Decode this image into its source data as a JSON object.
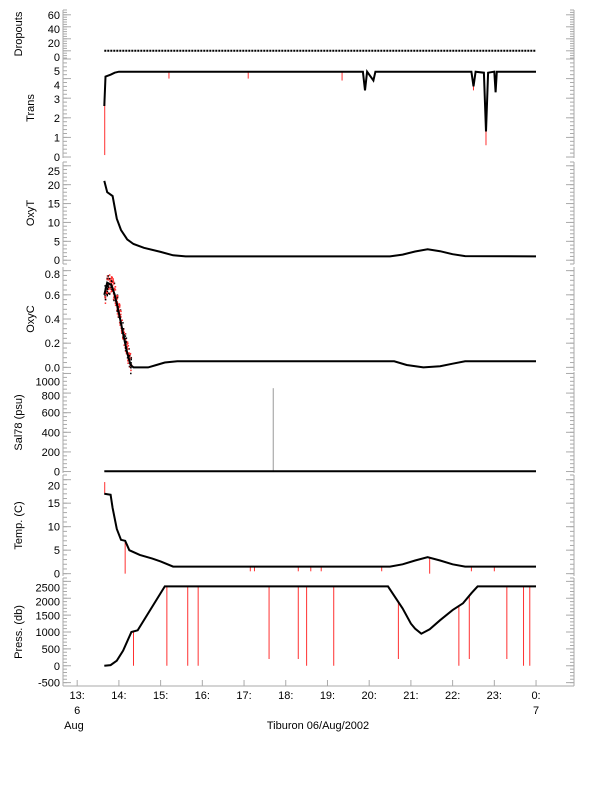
{
  "chart_data": {
    "type": "line",
    "title": "Tiburon 06/Aug/2002",
    "xlabel": "Tiburon 06/Aug/2002",
    "xlim": [
      12.66,
      24.91
    ],
    "x_ticks": [
      {
        "v": 13,
        "label": "13:"
      },
      {
        "v": 14,
        "label": "14:"
      },
      {
        "v": 15,
        "label": "15:"
      },
      {
        "v": 16,
        "label": "16:"
      },
      {
        "v": 17,
        "label": "17:"
      },
      {
        "v": 18,
        "label": "18:"
      },
      {
        "v": 19,
        "label": "19:"
      },
      {
        "v": 20,
        "label": "20:"
      },
      {
        "v": 21,
        "label": "21:"
      },
      {
        "v": 22,
        "label": "22:"
      },
      {
        "v": 23,
        "label": "23:"
      },
      {
        "v": 24,
        "label": "0:"
      }
    ],
    "x_date_labels": [
      {
        "v": 13,
        "day": "6",
        "month": "Aug"
      },
      {
        "v": 24,
        "day": "7",
        "month": ""
      }
    ],
    "colors": {
      "series": "#000000",
      "raw": "#ff3030",
      "raw_light": "#ffb0b0",
      "axis": "#aaaaaa"
    },
    "panels": [
      {
        "name": "dropouts",
        "ylabel": "Dropouts",
        "ylim": [
          -12,
          68
        ],
        "ticks": [
          "60",
          "40",
          "20",
          "0"
        ],
        "tick_values": [
          60,
          40,
          20,
          0
        ],
        "series": [
          [
            13.65,
            0
          ],
          [
            24,
            0
          ]
        ],
        "spikes": [],
        "dotted": true
      },
      {
        "name": "trans",
        "ylabel": "Trans",
        "ylim": [
          -0.05,
          5.05
        ],
        "ticks": [
          "5",
          "4",
          "3",
          "2",
          "1",
          "0"
        ],
        "tick_values": [
          5,
          4,
          3,
          2,
          1,
          0
        ],
        "series": [
          [
            13.65,
            2.6
          ],
          [
            13.68,
            4.1
          ],
          [
            13.8,
            4.2
          ],
          [
            13.9,
            4.3
          ],
          [
            14.0,
            4.35
          ],
          [
            19.85,
            4.35
          ],
          [
            19.9,
            3.4
          ],
          [
            19.95,
            4.35
          ],
          [
            20.1,
            3.9
          ],
          [
            20.15,
            4.35
          ],
          [
            22.45,
            4.35
          ],
          [
            22.5,
            3.6
          ],
          [
            22.55,
            4.35
          ],
          [
            22.75,
            4.3
          ],
          [
            22.8,
            1.3
          ],
          [
            22.85,
            4.3
          ],
          [
            23.0,
            4.35
          ],
          [
            23.03,
            3.3
          ],
          [
            23.06,
            4.35
          ],
          [
            24,
            4.35
          ]
        ],
        "spikes": [
          [
            13.66,
            0.1
          ],
          [
            15.2,
            4.0
          ],
          [
            17.1,
            4.0
          ],
          [
            19.35,
            3.9
          ],
          [
            22.8,
            0.6
          ],
          [
            22.5,
            3.4
          ]
        ]
      },
      {
        "name": "oxyt",
        "ylabel": "OxyT",
        "ylim": [
          -1,
          26
        ],
        "ticks": [
          "25",
          "20",
          "15",
          "10",
          "5",
          "0"
        ],
        "tick_values": [
          25,
          20,
          15,
          10,
          5,
          0
        ],
        "series": [
          [
            13.65,
            21
          ],
          [
            13.72,
            18
          ],
          [
            13.85,
            17
          ],
          [
            13.95,
            11
          ],
          [
            14.05,
            8
          ],
          [
            14.2,
            5.5
          ],
          [
            14.35,
            4.3
          ],
          [
            14.6,
            3.3
          ],
          [
            15.0,
            2.2
          ],
          [
            15.3,
            1.3
          ],
          [
            15.6,
            1.0
          ],
          [
            20.5,
            1.0
          ],
          [
            20.8,
            1.5
          ],
          [
            21.1,
            2.3
          ],
          [
            21.4,
            2.9
          ],
          [
            21.7,
            2.4
          ],
          [
            22.0,
            1.6
          ],
          [
            22.3,
            1.1
          ],
          [
            24,
            1.0
          ]
        ],
        "spikes": []
      },
      {
        "name": "oxyc",
        "ylabel": "OxyC",
        "ylim": [
          -0.03,
          0.83
        ],
        "ticks": [
          "0.8",
          "0.6",
          "0.4",
          "0.2",
          "0.0"
        ],
        "tick_values": [
          0.8,
          0.6,
          0.4,
          0.2,
          0.0
        ],
        "series": [
          [
            13.65,
            0.6
          ],
          [
            13.72,
            0.7
          ],
          [
            13.82,
            0.68
          ],
          [
            13.9,
            0.6
          ],
          [
            14.0,
            0.45
          ],
          [
            14.1,
            0.28
          ],
          [
            14.2,
            0.12
          ],
          [
            14.28,
            0.02
          ],
          [
            14.35,
            0.0
          ],
          [
            14.7,
            0.0
          ],
          [
            14.9,
            0.02
          ],
          [
            15.1,
            0.04
          ],
          [
            15.4,
            0.05
          ],
          [
            20.6,
            0.05
          ],
          [
            20.9,
            0.02
          ],
          [
            21.3,
            0.0
          ],
          [
            21.7,
            0.01
          ],
          [
            22.0,
            0.03
          ],
          [
            22.3,
            0.05
          ],
          [
            24,
            0.05
          ]
        ],
        "noisy_range": [
          13.65,
          14.3
        ],
        "spikes": []
      },
      {
        "name": "sal78",
        "ylabel": "Sal78 (psu)",
        "ylim": [
          -15,
          1015
        ],
        "ticks": [
          "1000",
          "800",
          "600",
          "400",
          "200",
          "0"
        ],
        "tick_values": [
          1000,
          800,
          600,
          400,
          200,
          0
        ],
        "series": [
          [
            13.65,
            2
          ],
          [
            24,
            2
          ]
        ],
        "spikes": [],
        "gray_spikes": [
          [
            17.7,
            850
          ]
        ]
      },
      {
        "name": "temp",
        "ylabel": "Temp. (C)",
        "ylim": [
          -0.5,
          21
        ],
        "ticks": [
          "20",
          "15",
          "10",
          "5",
          "0"
        ],
        "tick_values": [
          20,
          15,
          10,
          5,
          0
        ],
        "series": [
          [
            13.65,
            17
          ],
          [
            13.8,
            16.8
          ],
          [
            13.85,
            14
          ],
          [
            13.95,
            9.5
          ],
          [
            14.05,
            7.2
          ],
          [
            14.15,
            7
          ],
          [
            14.25,
            5
          ],
          [
            14.5,
            4
          ],
          [
            14.8,
            3.2
          ],
          [
            15.0,
            2.6
          ],
          [
            15.3,
            1.5
          ],
          [
            20.5,
            1.5
          ],
          [
            20.8,
            2
          ],
          [
            21.1,
            2.8
          ],
          [
            21.4,
            3.5
          ],
          [
            21.7,
            2.8
          ],
          [
            22.0,
            2
          ],
          [
            22.3,
            1.5
          ],
          [
            24,
            1.5
          ]
        ],
        "spikes": [
          [
            13.66,
            19.5
          ],
          [
            14.15,
            0
          ],
          [
            17.15,
            0.5
          ],
          [
            17.25,
            0.5
          ],
          [
            18.3,
            0.5
          ],
          [
            18.6,
            0.5
          ],
          [
            18.85,
            0.5
          ],
          [
            20.3,
            0.5
          ],
          [
            21.45,
            0
          ],
          [
            22.45,
            0.5
          ],
          [
            23.0,
            0.5
          ]
        ]
      },
      {
        "name": "press",
        "ylabel": "Press. (db)",
        "ylim": [
          -600,
          2600
        ],
        "ticks": [
          "2500",
          "2000",
          "1500",
          "1000",
          "500",
          "0",
          "-500"
        ],
        "tick_values": [
          2500,
          2000,
          1500,
          1000,
          500,
          0,
          -500
        ],
        "series": [
          [
            13.65,
            0
          ],
          [
            13.8,
            20
          ],
          [
            13.95,
            150
          ],
          [
            14.1,
            450
          ],
          [
            14.3,
            1000
          ],
          [
            14.45,
            1050
          ],
          [
            15.1,
            2350
          ],
          [
            20.45,
            2350
          ],
          [
            20.8,
            1700
          ],
          [
            21.0,
            1250
          ],
          [
            21.1,
            1100
          ],
          [
            21.25,
            950
          ],
          [
            21.45,
            1080
          ],
          [
            21.7,
            1350
          ],
          [
            22.0,
            1650
          ],
          [
            22.25,
            1850
          ],
          [
            22.45,
            2150
          ],
          [
            22.6,
            2350
          ],
          [
            24,
            2350
          ]
        ],
        "spikes": [
          [
            14.35,
            0
          ],
          [
            15.15,
            0
          ],
          [
            15.65,
            0
          ],
          [
            15.9,
            0
          ],
          [
            17.6,
            200
          ],
          [
            18.3,
            200
          ],
          [
            18.5,
            0
          ],
          [
            19.15,
            0
          ],
          [
            20.7,
            200
          ],
          [
            22.15,
            0
          ],
          [
            22.4,
            200
          ],
          [
            23.3,
            200
          ],
          [
            23.7,
            0
          ],
          [
            23.85,
            0
          ]
        ]
      }
    ]
  }
}
